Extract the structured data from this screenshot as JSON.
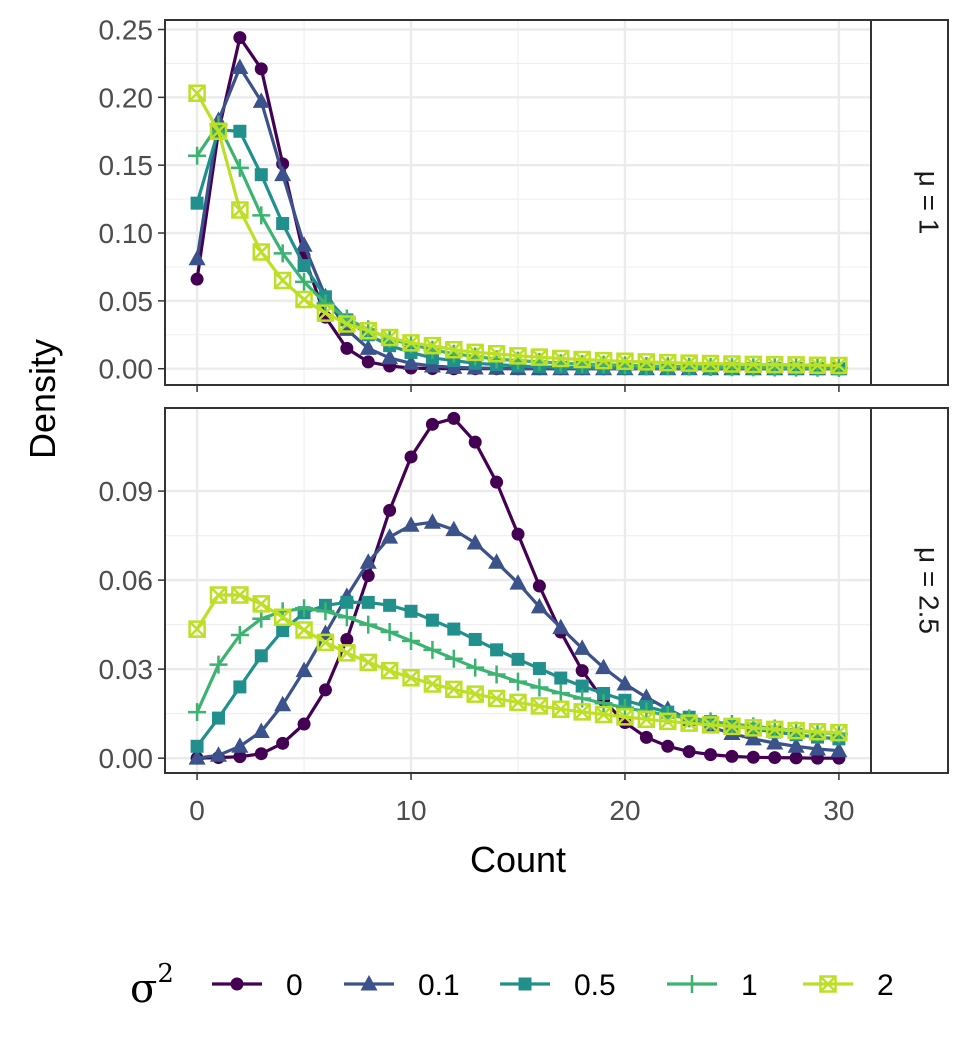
{
  "chart_data": {
    "type": "line",
    "xlabel": "Count",
    "ylabel": "Density",
    "x_ticks": [
      0,
      10,
      20,
      30
    ],
    "x_tick_labels": [
      "0",
      "10",
      "20",
      "30"
    ],
    "xlim": [
      -1.5,
      31.5
    ],
    "legend": {
      "title_base": "σ",
      "title_sup": "2",
      "placement": "bottom",
      "entries": [
        "0",
        "0.1",
        "0.5",
        "1",
        "2"
      ]
    },
    "colors": [
      "#440154",
      "#3b528b",
      "#21908c",
      "#3cb371",
      "#bddf26"
    ],
    "markers": [
      "circle",
      "triangle",
      "square",
      "plus",
      "square-x"
    ],
    "panels": [
      {
        "strip_label": "μ = 1",
        "ylim": [
          -0.012,
          0.257
        ],
        "y_ticks": [
          0,
          0.05,
          0.1,
          0.15,
          0.2,
          0.25
        ],
        "y_tick_labels": [
          "0.00",
          "0.05",
          "0.10",
          "0.15",
          "0.20",
          "0.25"
        ],
        "series": [
          {
            "name": "0",
            "values": [
              0.066,
              0.175,
              0.244,
              0.221,
              0.151,
              0.083,
              0.038,
              0.015,
              0.005,
              0.002,
              0.0005,
              0.0001,
              0,
              0,
              0,
              0,
              0,
              0,
              0,
              0,
              0,
              0,
              0,
              0,
              0,
              0,
              0,
              0,
              0,
              0,
              0
            ]
          },
          {
            "name": "0.1",
            "values": [
              0.081,
              0.183,
              0.222,
              0.197,
              0.143,
              0.091,
              0.053,
              0.029,
              0.015,
              0.008,
              0.004,
              0.002,
              0.001,
              0.0005,
              0.0003,
              0.0001,
              0,
              0,
              0,
              0,
              0,
              0,
              0,
              0,
              0,
              0,
              0,
              0,
              0,
              0,
              0
            ]
          },
          {
            "name": "0.5",
            "values": [
              0.122,
              0.176,
              0.175,
              0.143,
              0.107,
              0.076,
              0.053,
              0.036,
              0.025,
              0.017,
              0.012,
              0.008,
              0.006,
              0.004,
              0.003,
              0.002,
              0.0015,
              0.001,
              0.0008,
              0.0006,
              0.0005,
              0.0004,
              0.0003,
              0.0002,
              0.0002,
              0.0001,
              0.0001,
              0.0001,
              0.0001,
              0,
              0
            ]
          },
          {
            "name": "1",
            "values": [
              0.157,
              0.18,
              0.148,
              0.113,
              0.085,
              0.064,
              0.048,
              0.037,
              0.029,
              0.022,
              0.018,
              0.014,
              0.011,
              0.009,
              0.007,
              0.006,
              0.005,
              0.004,
              0.0035,
              0.003,
              0.0025,
              0.002,
              0.0018,
              0.0015,
              0.0013,
              0.0011,
              0.001,
              0.0009,
              0.0008,
              0.0007,
              0.0006
            ]
          },
          {
            "name": "2",
            "values": [
              0.203,
              0.175,
              0.117,
              0.086,
              0.065,
              0.051,
              0.041,
              0.033,
              0.028,
              0.023,
              0.019,
              0.017,
              0.014,
              0.012,
              0.011,
              0.0095,
              0.0085,
              0.0075,
              0.0068,
              0.006,
              0.0055,
              0.005,
              0.0045,
              0.0041,
              0.0038,
              0.0035,
              0.0032,
              0.003,
              0.0028,
              0.0026,
              0.0024
            ]
          }
        ]
      },
      {
        "strip_label": "μ = 2.5",
        "ylim": [
          -0.005,
          0.118
        ],
        "y_ticks": [
          0,
          0.03,
          0.06,
          0.09
        ],
        "y_tick_labels": [
          "0.00",
          "0.03",
          "0.06",
          "0.09"
        ],
        "series": [
          {
            "name": "0",
            "values": [
              0,
              0.0002,
              0.0005,
              0.0015,
              0.005,
              0.0115,
              0.023,
              0.04,
              0.0615,
              0.0835,
              0.1015,
              0.1125,
              0.1145,
              0.1065,
              0.093,
              0.0755,
              0.058,
              0.0425,
              0.0295,
              0.0195,
              0.012,
              0.007,
              0.004,
              0.0022,
              0.0012,
              0.0006,
              0.0003,
              0.0002,
              0.0001,
              0,
              0
            ]
          },
          {
            "name": "0.1",
            "values": [
              0,
              0.001,
              0.004,
              0.009,
              0.018,
              0.0295,
              0.042,
              0.0545,
              0.066,
              0.0745,
              0.0785,
              0.0795,
              0.077,
              0.0725,
              0.066,
              0.059,
              0.051,
              0.044,
              0.037,
              0.0305,
              0.025,
              0.0205,
              0.0165,
              0.013,
              0.0105,
              0.0083,
              0.0065,
              0.0051,
              0.004,
              0.0031,
              0.0025
            ]
          },
          {
            "name": "0.5",
            "values": [
              0.004,
              0.0135,
              0.024,
              0.0345,
              0.043,
              0.049,
              0.0515,
              0.0525,
              0.0525,
              0.0515,
              0.0495,
              0.0465,
              0.0435,
              0.04,
              0.0365,
              0.0333,
              0.0302,
              0.027,
              0.0243,
              0.0218,
              0.0195,
              0.0174,
              0.0155,
              0.0138,
              0.0123,
              0.011,
              0.0098,
              0.0088,
              0.0079,
              0.0071,
              0.0065
            ]
          },
          {
            "name": "1",
            "values": [
              0.0155,
              0.0315,
              0.0415,
              0.047,
              0.0495,
              0.0505,
              0.0495,
              0.0475,
              0.045,
              0.0425,
              0.0395,
              0.0365,
              0.0335,
              0.0305,
              0.0282,
              0.0258,
              0.0238,
              0.0219,
              0.0201,
              0.0185,
              0.017,
              0.0157,
              0.0145,
              0.0134,
              0.0124,
              0.0115,
              0.0107,
              0.01,
              0.0093,
              0.0087,
              0.0082
            ]
          },
          {
            "name": "2",
            "values": [
              0.0435,
              0.055,
              0.055,
              0.052,
              0.0475,
              0.0432,
              0.039,
              0.0355,
              0.0323,
              0.0295,
              0.0271,
              0.025,
              0.0232,
              0.0216,
              0.0201,
              0.0188,
              0.0176,
              0.0165,
              0.0156,
              0.0147,
              0.0139,
              0.0131,
              0.0124,
              0.0118,
              0.0112,
              0.0107,
              0.0102,
              0.0097,
              0.0093,
              0.0089,
              0.0086
            ]
          }
        ]
      }
    ]
  }
}
